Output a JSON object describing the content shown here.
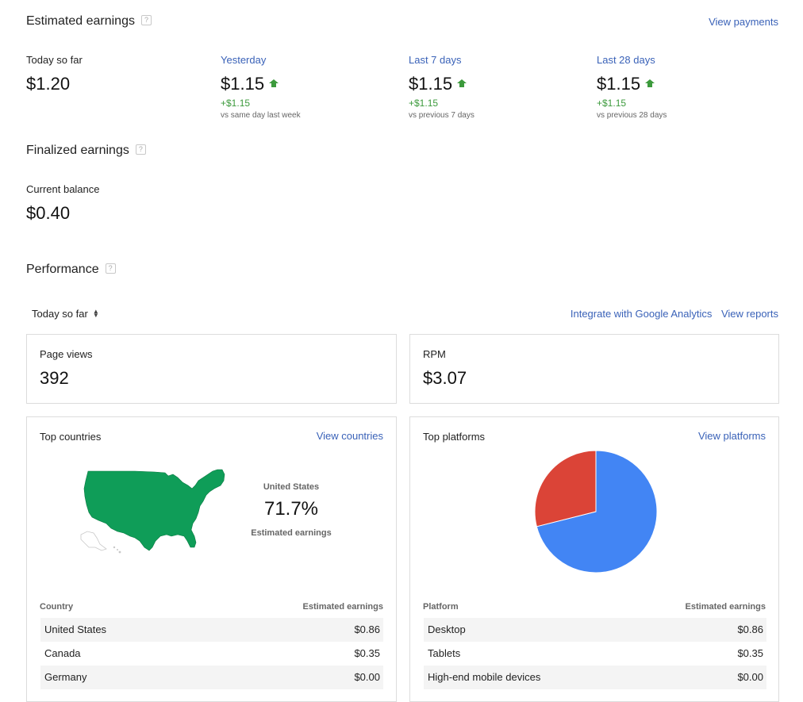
{
  "estimated": {
    "title": "Estimated earnings",
    "help": "?",
    "view_payments": "View payments",
    "periods": [
      {
        "label": "Today so far",
        "value": "$1.20",
        "delta": "",
        "compare": "",
        "is_link": false
      },
      {
        "label": "Yesterday",
        "value": "$1.15",
        "delta": "+$1.15",
        "compare": "vs same day last week",
        "is_link": true
      },
      {
        "label": "Last 7 days",
        "value": "$1.15",
        "delta": "+$1.15",
        "compare": "vs previous 7 days",
        "is_link": true
      },
      {
        "label": "Last 28 days",
        "value": "$1.15",
        "delta": "+$1.15",
        "compare": "vs previous 28 days",
        "is_link": true
      }
    ]
  },
  "finalized": {
    "title": "Finalized earnings",
    "help": "?",
    "balance_label": "Current balance",
    "balance_value": "$0.40"
  },
  "performance": {
    "title": "Performance",
    "help": "?",
    "range_select": "Today so far",
    "integrate_link": "Integrate with Google Analytics",
    "view_reports_link": "View reports",
    "page_views": {
      "label": "Page views",
      "value": "392"
    },
    "rpm": {
      "label": "RPM",
      "value": "$3.07"
    }
  },
  "top_countries": {
    "title": "Top countries",
    "view_link": "View countries",
    "map_country": "United States",
    "map_percent": "71.7%",
    "map_caption": "Estimated earnings",
    "col_country": "Country",
    "col_earnings": "Estimated earnings",
    "rows": [
      {
        "name": "United States",
        "value": "$0.86"
      },
      {
        "name": "Canada",
        "value": "$0.35"
      },
      {
        "name": "Germany",
        "value": "$0.00"
      }
    ]
  },
  "top_platforms": {
    "title": "Top platforms",
    "view_link": "View platforms",
    "col_platform": "Platform",
    "col_earnings": "Estimated earnings",
    "rows": [
      {
        "name": "Desktop",
        "value": "$0.86"
      },
      {
        "name": "Tablets",
        "value": "$0.35"
      },
      {
        "name": "High-end mobile devices",
        "value": "$0.00"
      }
    ]
  },
  "colors": {
    "link": "#3a62b8",
    "positive": "#3c9a3c",
    "map_fill": "#0f9d58",
    "pie_blue": "#4285f4",
    "pie_red": "#db4437"
  },
  "pie": {
    "slices": [
      {
        "name": "Desktop",
        "value": 0.86,
        "color": "#4285f4"
      },
      {
        "name": "Tablets",
        "value": 0.35,
        "color": "#db4437"
      }
    ]
  }
}
